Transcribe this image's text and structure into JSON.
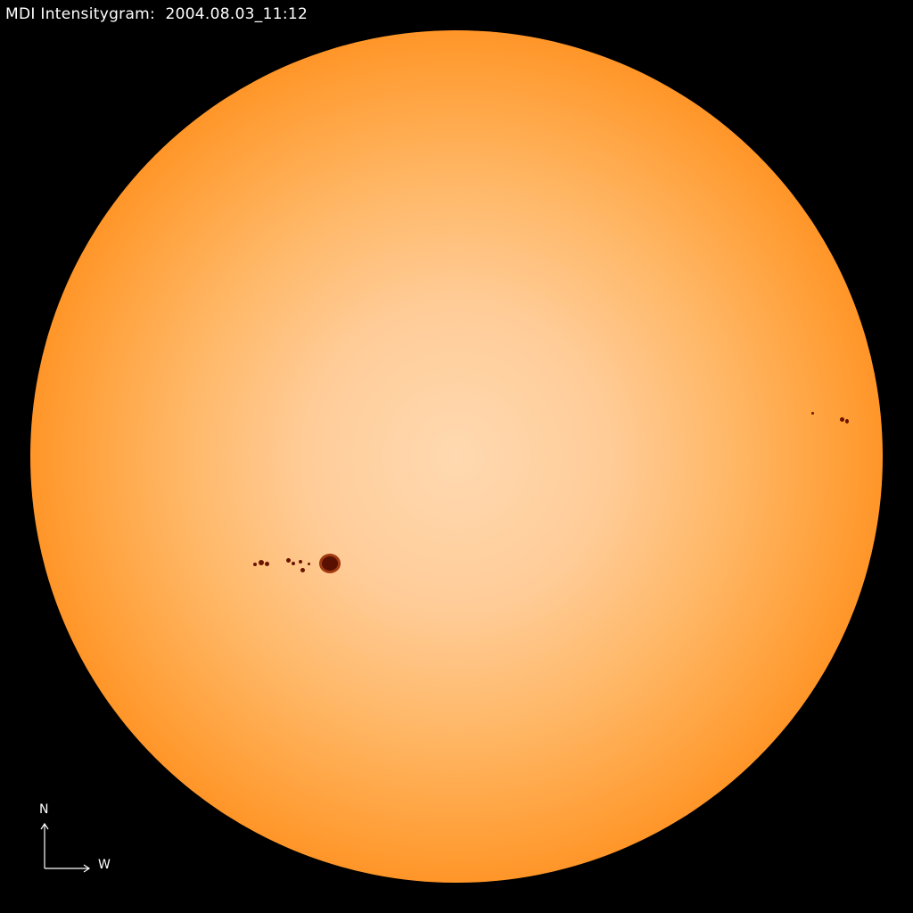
{
  "title": "MDI Intensitygram:  2004.08.03_11:12",
  "compass": {
    "north": "N",
    "west": "W"
  },
  "colors": {
    "background": "#000000",
    "disk_center": "#ffd9b0",
    "disk_limb": "#a02400",
    "sunspot": "#6a1400"
  }
}
